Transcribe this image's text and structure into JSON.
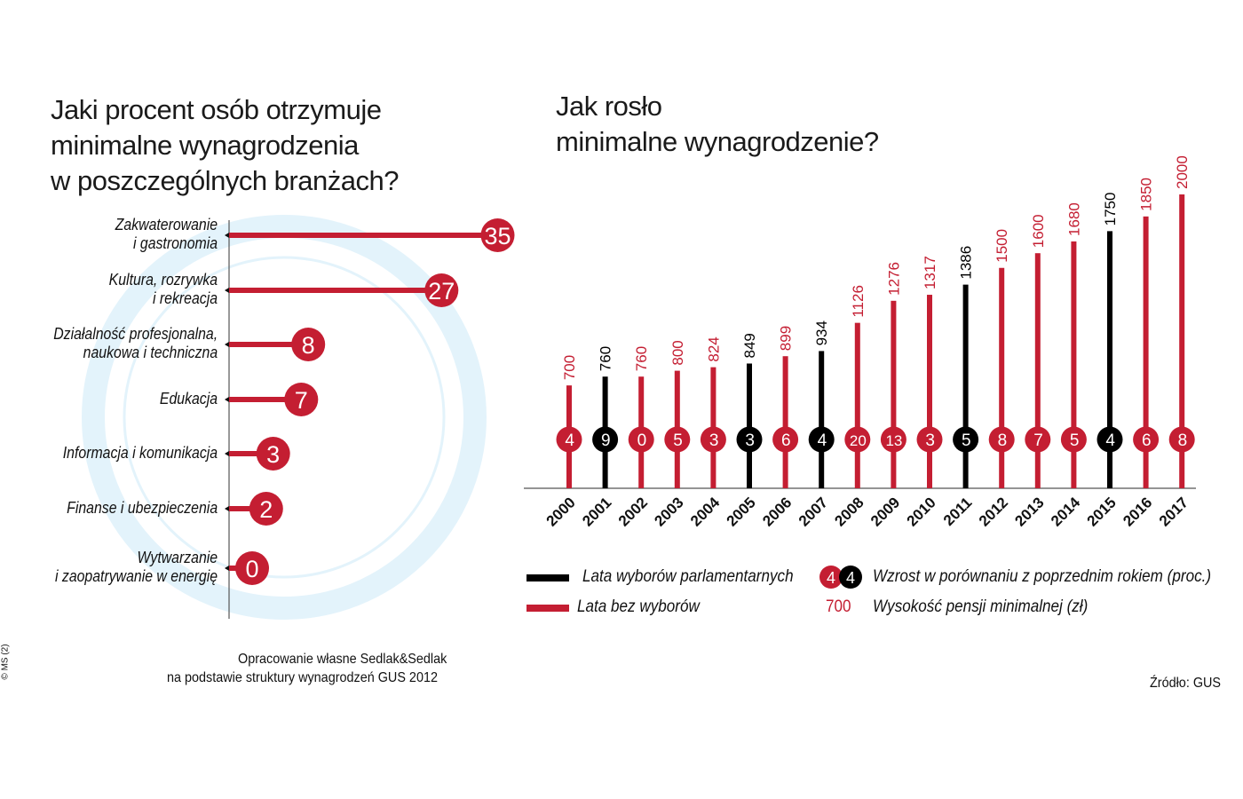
{
  "colors": {
    "red": "#c41e32",
    "black": "#000000",
    "watermark": "#e3f3fb",
    "axis": "#555555"
  },
  "chart_data": [
    {
      "type": "bar",
      "orientation": "horizontal",
      "title": [
        "Jaki procent osób otrzymuje",
        "minimalne wynagrodzenia",
        "w poszczególnych branżach?"
      ],
      "categories": [
        [
          "Zakwaterowanie",
          "i gastronomia"
        ],
        [
          "Kultura, rozrywka",
          "i rekreacja"
        ],
        [
          "Działalność profesjonalna,",
          "naukowa i techniczna"
        ],
        [
          "Edukacja"
        ],
        [
          "Informacja i komunikacja"
        ],
        [
          "Finanse i ubezpieczenia"
        ],
        [
          "Wytwarzanie",
          "i zaopatrywanie w energię"
        ]
      ],
      "values": [
        35,
        27,
        8,
        7,
        3,
        2,
        0
      ],
      "unit": "%",
      "source": [
        "Opracowanie własne Sedlak&Sedlak",
        "na podstawie struktury wynagrodzeń GUS 2012"
      ]
    },
    {
      "type": "bar",
      "title": [
        "Jak rosło",
        "minimalne wynagrodzenie?"
      ],
      "categories": [
        "2000",
        "2001",
        "2002",
        "2003",
        "2004",
        "2005",
        "2006",
        "2007",
        "2008",
        "2009",
        "2010",
        "2011",
        "2012",
        "2013",
        "2014",
        "2015",
        "2016",
        "2017"
      ],
      "values": [
        700,
        760,
        760,
        800,
        824,
        849,
        899,
        934,
        1126,
        1276,
        1317,
        1386,
        1500,
        1600,
        1680,
        1750,
        1850,
        2000
      ],
      "growth_pct": [
        4,
        9,
        0,
        5,
        3,
        3,
        6,
        4,
        20,
        13,
        3,
        5,
        8,
        7,
        5,
        4,
        6,
        8
      ],
      "election_year": [
        false,
        true,
        false,
        false,
        false,
        true,
        false,
        true,
        false,
        false,
        false,
        true,
        false,
        false,
        false,
        true,
        false,
        false
      ],
      "ylim": [
        0,
        2000
      ],
      "legend": {
        "election": "Lata wyborów parlamentarnych",
        "no_election": "Lata bez wyborów",
        "growth_sample": [
          "4",
          "4"
        ],
        "growth": "Wzrost w porównaniu z poprzednim rokiem (proc.)",
        "value_sample": "700",
        "value": "Wysokość pensji minimalnej (zł)"
      },
      "source": "Źródło: GUS"
    }
  ],
  "credit": "© MS (2)"
}
